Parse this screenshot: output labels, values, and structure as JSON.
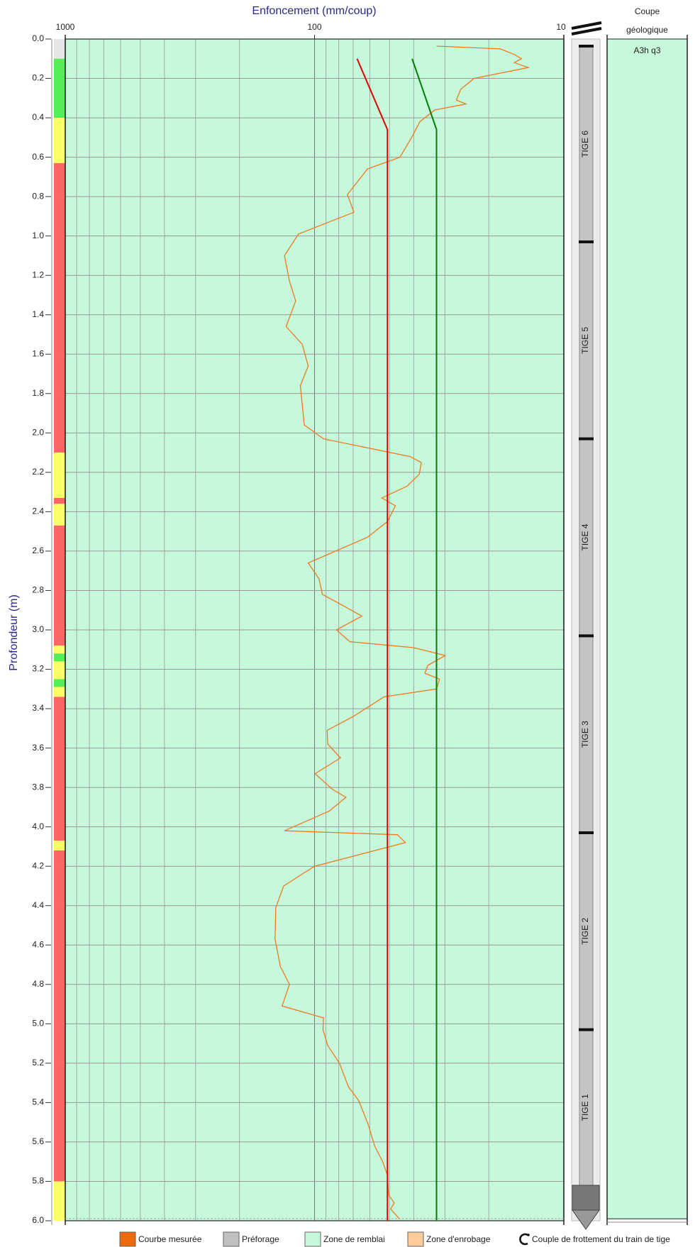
{
  "chart_data": {
    "type": "line",
    "title": "Enfoncement (mm/coup)",
    "ylabel": "Profondeur (m)",
    "xscale": "log",
    "xlim": [
      1000,
      10
    ],
    "xticks": [
      1000,
      100,
      10
    ],
    "xminor": [
      900,
      800,
      700,
      600,
      500,
      400,
      300,
      200,
      90,
      80,
      70,
      60,
      50,
      40,
      30,
      20
    ],
    "ylim": [
      0,
      6
    ],
    "yticks": [
      {
        "value": 0,
        "label": "0.0"
      },
      {
        "value": 0.2,
        "label": "0.2"
      },
      {
        "value": 0.4,
        "label": "0.4"
      },
      {
        "value": 0.6,
        "label": "0.6"
      },
      {
        "value": 0.8,
        "label": "0.8"
      },
      {
        "value": 1,
        "label": "1.0"
      },
      {
        "value": 1.2,
        "label": "1.2"
      },
      {
        "value": 1.4,
        "label": "1.4"
      },
      {
        "value": 1.6,
        "label": "1.6"
      },
      {
        "value": 1.8,
        "label": "1.8"
      },
      {
        "value": 2,
        "label": "2.0"
      },
      {
        "value": 2.2,
        "label": "2.2"
      },
      {
        "value": 2.4,
        "label": "2.4"
      },
      {
        "value": 2.6,
        "label": "2.6"
      },
      {
        "value": 2.8,
        "label": "2.8"
      },
      {
        "value": 3,
        "label": "3.0"
      },
      {
        "value": 3.2,
        "label": "3.2"
      },
      {
        "value": 3.4,
        "label": "3.4"
      },
      {
        "value": 3.6,
        "label": "3.6"
      },
      {
        "value": 3.8,
        "label": "3.8"
      },
      {
        "value": 4,
        "label": "4.0"
      },
      {
        "value": 4.2,
        "label": "4.2"
      },
      {
        "value": 4.4,
        "label": "4.4"
      },
      {
        "value": 4.6,
        "label": "4.6"
      },
      {
        "value": 4.8,
        "label": "4.8"
      },
      {
        "value": 5,
        "label": "5.0"
      },
      {
        "value": 5.2,
        "label": "5.2"
      },
      {
        "value": 5.4,
        "label": "5.4"
      },
      {
        "value": 5.6,
        "label": "5.6"
      },
      {
        "value": 5.8,
        "label": "5.8"
      },
      {
        "value": 6,
        "label": "6.0"
      }
    ],
    "grid": true,
    "background": "#c6f8dc",
    "series": [
      {
        "color": "#f07a1a",
        "depths": [
          0.036,
          0.05,
          0.08,
          0.1,
          0.12,
          0.145,
          0.2,
          0.255,
          0.31,
          0.33,
          0.36,
          0.42,
          0.49,
          0.6,
          0.66,
          0.79,
          0.88,
          0.99,
          1.1,
          1.23,
          1.33,
          1.46,
          1.55,
          1.66,
          1.76,
          1.96,
          2.03,
          2.12,
          2.15,
          2.21,
          2.27,
          2.33,
          2.37,
          2.45,
          2.53,
          2.66,
          2.74,
          2.82,
          2.88,
          2.93,
          3.0,
          3.06,
          3.09,
          3.13,
          3.18,
          3.22,
          3.25,
          3.3,
          3.34,
          3.44,
          3.51,
          3.58,
          3.65,
          3.73,
          3.81,
          3.85,
          3.92,
          4.02,
          4.04,
          4.08,
          4.2,
          4.3,
          4.41,
          4.57,
          4.71,
          4.8,
          4.91,
          4.97,
          5.03,
          5.11,
          5.2,
          5.32,
          5.39,
          5.51,
          5.62,
          5.7,
          5.77,
          5.87,
          5.91,
          5.94,
          5.99
        ],
        "values": [
          32.4,
          18,
          15.7,
          14.8,
          15.8,
          13.9,
          22.9,
          25.9,
          27,
          24.7,
          32.9,
          37.8,
          40.4,
          45.4,
          61.4,
          73.8,
          69.5,
          116,
          132,
          126,
          119,
          130,
          112,
          106,
          114,
          110,
          92,
          41.3,
          37.3,
          38,
          42.5,
          53.7,
          47.4,
          51,
          61.4,
          106,
          96,
          93,
          76,
          64.6,
          81.7,
          72.1,
          40.1,
          29.9,
          35.1,
          36.1,
          31.5,
          32.4,
          52.6,
          70,
          89,
          88.5,
          78.7,
          99.5,
          84.7,
          74.8,
          87.3,
          132,
          46.5,
          43.2,
          100,
          133,
          143,
          144,
          137,
          126,
          135,
          92,
          92.5,
          88.5,
          79.4,
          73.1,
          66.5,
          61,
          57.4,
          53.3,
          51,
          50.4,
          47.9,
          49.5,
          45.7
        ]
      },
      {
        "color": "#e00000",
        "depths": [
          0.1,
          0.46,
          6.0
        ],
        "values": [
          67.5,
          51,
          51
        ]
      },
      {
        "color": "#008000",
        "depths": [
          0.1,
          0.46,
          6.0
        ],
        "values": [
          40.6,
          32.4,
          32.4
        ]
      }
    ],
    "quality_zones": [
      {
        "from": 0,
        "to": 0.1,
        "color": "#e6e6e6"
      },
      {
        "from": 0.1,
        "to": 0.4,
        "color": "#55ee55"
      },
      {
        "from": 0.4,
        "to": 0.63,
        "color": "#ffff66"
      },
      {
        "from": 0.63,
        "to": 2.1,
        "color": "#ff6666"
      },
      {
        "from": 2.1,
        "to": 2.33,
        "color": "#ffff66"
      },
      {
        "from": 2.33,
        "to": 2.36,
        "color": "#ff6666"
      },
      {
        "from": 2.36,
        "to": 2.47,
        "color": "#ffff66"
      },
      {
        "from": 2.47,
        "to": 3.08,
        "color": "#ff6666"
      },
      {
        "from": 3.08,
        "to": 3.12,
        "color": "#ffff66"
      },
      {
        "from": 3.12,
        "to": 3.16,
        "color": "#55ee55"
      },
      {
        "from": 3.16,
        "to": 3.25,
        "color": "#ffff66"
      },
      {
        "from": 3.25,
        "to": 3.29,
        "color": "#55ee55"
      },
      {
        "from": 3.29,
        "to": 3.34,
        "color": "#ffff66"
      },
      {
        "from": 3.34,
        "to": 4.07,
        "color": "#ff6666"
      },
      {
        "from": 4.07,
        "to": 4.12,
        "color": "#ffff66"
      },
      {
        "from": 4.12,
        "to": 5.8,
        "color": "#ff6666"
      },
      {
        "from": 5.8,
        "to": 6.0,
        "color": "#ffff66"
      }
    ],
    "rods": [
      {
        "label": "TIGE 6",
        "top": 0.036,
        "bottom": 1.03
      },
      {
        "label": "TIGE 5",
        "top": 1.03,
        "bottom": 2.03
      },
      {
        "label": "TIGE 4",
        "top": 2.03,
        "bottom": 3.03
      },
      {
        "label": "TIGE 3",
        "top": 3.03,
        "bottom": 4.03
      },
      {
        "label": "TIGE 2",
        "top": 4.03,
        "bottom": 5.03
      },
      {
        "label": "TIGE 1",
        "top": 5.03,
        "bottom": 5.82
      }
    ],
    "rod_tip": [
      5.82,
      6.0
    ],
    "geology": {
      "header": [
        "Coupe",
        "géologique"
      ],
      "layers": [
        {
          "label": "A3h q3",
          "top": 0,
          "bottom": 5.99,
          "color": "#c6f8dc"
        }
      ]
    },
    "legend": [
      {
        "label": "Courbe mesurée",
        "color": "#ee6a0a"
      },
      {
        "label": "Préforage",
        "color": "#c0c0c0"
      },
      {
        "label": "Zone de remblai",
        "color": "#c6f8dc"
      },
      {
        "label": "Zone d'enrobage",
        "color": "#ffcc99"
      },
      {
        "label": "Couple de frottement du train de tige"
      }
    ]
  }
}
